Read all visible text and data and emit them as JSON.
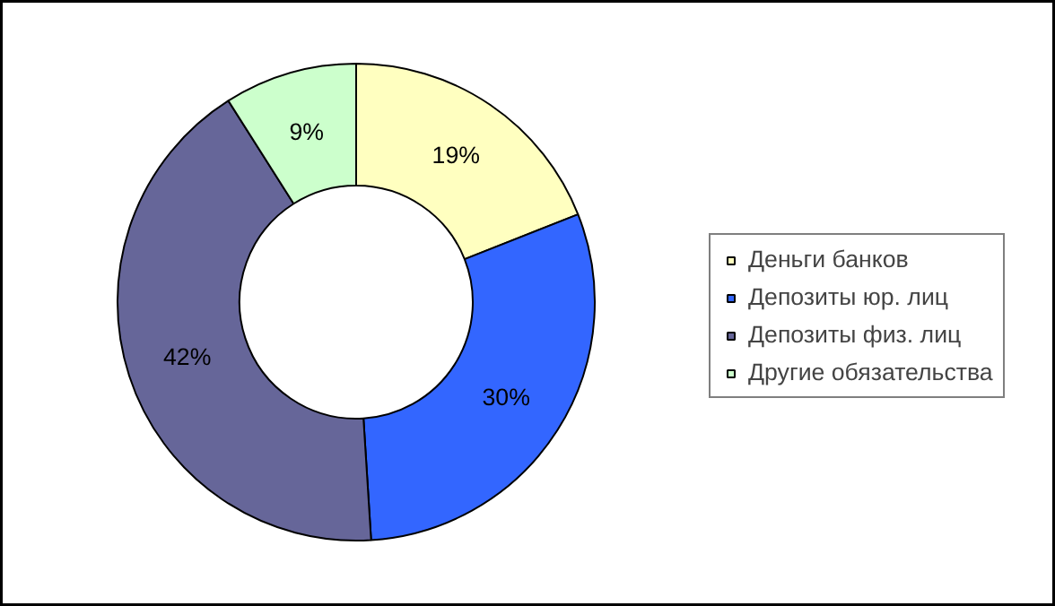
{
  "chart_data": {
    "type": "donut",
    "categories": [
      "Деньги банков",
      "Депозиты юр. лиц",
      "Депозиты физ. лиц",
      "Другие обязательства"
    ],
    "values": [
      19,
      30,
      42,
      9
    ],
    "colors": [
      "#ffffc0",
      "#3366ff",
      "#666699",
      "#ccffcc"
    ],
    "value_labels": [
      "19%",
      "30%",
      "42%",
      "9%"
    ],
    "legend": "right"
  }
}
